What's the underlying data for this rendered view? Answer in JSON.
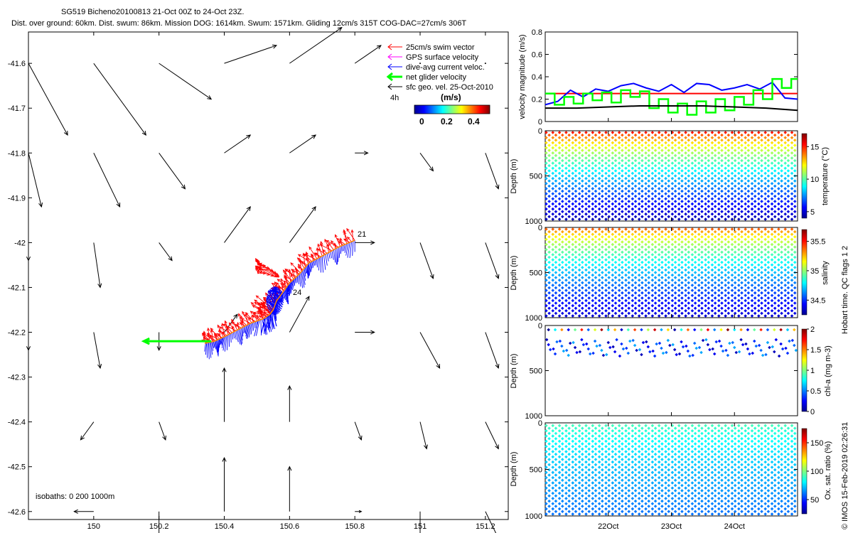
{
  "header": {
    "title": "SG519 Bicheno20100813 21-Oct 00Z to 24-Oct 23Z.",
    "subtitle": "Dist. over ground: 60km. Dist. swum: 86km. Mission DOG: 1614km. Swum: 1571km. Gliding 12cm/s 315T COG-DAC=27cm/s 306T"
  },
  "colors": {
    "swim": "#ff0000",
    "gps": "#ff00ff",
    "dac": "#0000ff",
    "net": "#00ff00",
    "geo": "#000000",
    "mean_line": "#ff0000"
  },
  "chart_data": [
    {
      "type": "scatter",
      "id": "map",
      "xlim": [
        149.8,
        151.27
      ],
      "ylim": [
        -42.64,
        -41.53
      ],
      "xticks": [
        150,
        150.2,
        150.4,
        150.6,
        150.8,
        151,
        151.2
      ],
      "xtick_labels": [
        "150",
        "150.2",
        "150.4",
        "150.6",
        "150.8",
        "151",
        "151.2"
      ],
      "yticks": [
        -41.6,
        -41.7,
        -41.8,
        -41.9,
        -42,
        -42.1,
        -42.2,
        -42.3,
        -42.4,
        -42.5,
        -42.6
      ],
      "ytick_labels": [
        "-41.6",
        "-41.7",
        "-41.8",
        "-41.9",
        "-42",
        "-42.1",
        "-42.2",
        "-42.3",
        "-42.4",
        "-42.5",
        "-42.6"
      ],
      "legend": {
        "placement": "top-right",
        "items": [
          {
            "label": "25cm/s swim vector",
            "color": "#ff0000"
          },
          {
            "label": "GPS surface velocity",
            "color": "#ff00ff"
          },
          {
            "label": "dive-avg current veloc.",
            "color": "#0000ff"
          },
          {
            "label": "net glider velocity",
            "color": "#00ff00"
          },
          {
            "label": "sfc geo. vel. 25-Oct-2010",
            "color": "#000000"
          }
        ]
      },
      "colorbar": {
        "label": "(m/s)",
        "ticks": [
          "0",
          "0.2",
          "0.4"
        ],
        "range": [
          0,
          0.5
        ],
        "scale_note": "4h"
      },
      "annotations": [
        {
          "text": "21",
          "lon": 150.82,
          "lat": -41.995
        },
        {
          "text": "24",
          "lon": 150.615,
          "lat": -42.113
        }
      ],
      "isobaths_label": "isobaths: 0   200  1000m",
      "geo_vectors": [
        {
          "lon": 149.8,
          "lat": -41.6,
          "du": 0.03,
          "dv": -0.04
        },
        {
          "lon": 150.0,
          "lat": -41.6,
          "du": 0.04,
          "dv": -0.04
        },
        {
          "lon": 150.2,
          "lat": -41.6,
          "du": 0.04,
          "dv": -0.02
        },
        {
          "lon": 150.4,
          "lat": -41.6,
          "du": 0.04,
          "dv": 0.01
        },
        {
          "lon": 150.6,
          "lat": -41.6,
          "du": 0.04,
          "dv": 0.02
        },
        {
          "lon": 150.8,
          "lat": -41.6,
          "du": 0.02,
          "dv": 0.01
        },
        {
          "lon": 151.0,
          "lat": -41.6,
          "du": 0.0,
          "dv": 0.0
        },
        {
          "lon": 151.2,
          "lat": -41.6,
          "du": 0.0,
          "dv": 0.0
        },
        {
          "lon": 149.8,
          "lat": -41.8,
          "du": 0.01,
          "dv": -0.03
        },
        {
          "lon": 150.0,
          "lat": -41.8,
          "du": 0.02,
          "dv": -0.03
        },
        {
          "lon": 150.2,
          "lat": -41.8,
          "du": 0.02,
          "dv": -0.02
        },
        {
          "lon": 150.4,
          "lat": -41.8,
          "du": 0.02,
          "dv": 0.01
        },
        {
          "lon": 150.6,
          "lat": -41.8,
          "du": 0.02,
          "dv": 0.01
        },
        {
          "lon": 150.8,
          "lat": -41.8,
          "du": 0.01,
          "dv": 0.0
        },
        {
          "lon": 151.0,
          "lat": -41.8,
          "du": 0.01,
          "dv": -0.01
        },
        {
          "lon": 151.2,
          "lat": -41.8,
          "du": 0.01,
          "dv": -0.02
        },
        {
          "lon": 149.8,
          "lat": -42.0,
          "du": 0.0,
          "dv": -0.01
        },
        {
          "lon": 150.0,
          "lat": -42.0,
          "du": 0.005,
          "dv": -0.025
        },
        {
          "lon": 150.2,
          "lat": -42.0,
          "du": 0.01,
          "dv": -0.01
        },
        {
          "lon": 150.4,
          "lat": -42.0,
          "du": 0.02,
          "dv": 0.02
        },
        {
          "lon": 150.6,
          "lat": -42.0,
          "du": 0.02,
          "dv": 0.02
        },
        {
          "lon": 150.8,
          "lat": -42.0,
          "du": 0.015,
          "dv": 0.0
        },
        {
          "lon": 151.0,
          "lat": -42.0,
          "du": 0.01,
          "dv": -0.02
        },
        {
          "lon": 151.2,
          "lat": -42.0,
          "du": 0.01,
          "dv": -0.02
        },
        {
          "lon": 149.8,
          "lat": -42.2,
          "du": 0.0,
          "dv": -0.01
        },
        {
          "lon": 150.0,
          "lat": -42.2,
          "du": 0.005,
          "dv": -0.02
        },
        {
          "lon": 150.2,
          "lat": -42.2,
          "du": 0.0,
          "dv": -0.01
        },
        {
          "lon": 150.4,
          "lat": -42.2,
          "du": 0.01,
          "dv": 0.01
        },
        {
          "lon": 150.6,
          "lat": -42.2,
          "du": 0.015,
          "dv": 0.02
        },
        {
          "lon": 150.8,
          "lat": -42.2,
          "du": 0.015,
          "dv": 0.0
        },
        {
          "lon": 151.0,
          "lat": -42.2,
          "du": 0.015,
          "dv": -0.02
        },
        {
          "lon": 151.2,
          "lat": -42.2,
          "du": 0.01,
          "dv": -0.02
        },
        {
          "lon": 150.0,
          "lat": -42.4,
          "du": -0.01,
          "dv": -0.01
        },
        {
          "lon": 150.2,
          "lat": -42.4,
          "du": 0.005,
          "dv": -0.01
        },
        {
          "lon": 150.4,
          "lat": -42.4,
          "du": 0.0,
          "dv": 0.03
        },
        {
          "lon": 150.6,
          "lat": -42.4,
          "du": 0.0,
          "dv": 0.02
        },
        {
          "lon": 150.8,
          "lat": -42.4,
          "du": 0.005,
          "dv": -0.01
        },
        {
          "lon": 151.0,
          "lat": -42.4,
          "du": 0.005,
          "dv": -0.015
        },
        {
          "lon": 151.2,
          "lat": -42.4,
          "du": 0.01,
          "dv": -0.015
        },
        {
          "lon": 150.0,
          "lat": -42.6,
          "du": -0.015,
          "dv": 0.0
        },
        {
          "lon": 150.2,
          "lat": -42.6,
          "du": 0.0,
          "dv": -0.015
        },
        {
          "lon": 150.4,
          "lat": -42.6,
          "du": 0.0,
          "dv": 0.03
        },
        {
          "lon": 150.6,
          "lat": -42.6,
          "du": 0.0,
          "dv": 0.025
        },
        {
          "lon": 150.8,
          "lat": -42.6,
          "du": 0.005,
          "dv": 0.0
        },
        {
          "lon": 151.0,
          "lat": -42.6,
          "du": 0.0,
          "dv": -0.015
        },
        {
          "lon": 151.2,
          "lat": -42.6,
          "du": 0.01,
          "dv": -0.015
        }
      ],
      "track": {
        "lon": [
          150.8,
          150.75,
          150.7,
          150.66,
          150.63,
          150.6,
          150.58,
          150.56,
          150.55,
          150.54,
          150.52,
          150.48,
          150.44,
          150.4,
          150.37,
          150.34
        ],
        "lat": [
          -41.995,
          -42.01,
          -42.03,
          -42.045,
          -42.07,
          -42.09,
          -42.11,
          -42.13,
          -42.15,
          -42.16,
          -42.17,
          -42.18,
          -42.195,
          -42.21,
          -42.22,
          -42.225
        ]
      },
      "net_velocity": {
        "lon": 150.36,
        "lat": -42.22,
        "du": -0.08,
        "dv": 0.0
      }
    },
    {
      "type": "line",
      "id": "velocity",
      "ylabel": "velocity magnitude (m/s)",
      "xlim": [
        0,
        4
      ],
      "ylim": [
        0,
        0.8
      ],
      "yticks": [
        0,
        0.2,
        0.4,
        0.6,
        0.8
      ],
      "ytick_labels": [
        "0",
        "0.2",
        "0.4",
        "0.6",
        "0.8"
      ],
      "series": [
        {
          "color": "#ff0000",
          "x": [
            0,
            4
          ],
          "y": [
            0.25,
            0.25
          ]
        },
        {
          "color": "#0000ff",
          "x": [
            0,
            0.2,
            0.4,
            0.6,
            0.8,
            1.0,
            1.2,
            1.4,
            1.6,
            1.8,
            2.0,
            2.2,
            2.4,
            2.6,
            2.8,
            3.0,
            3.2,
            3.4,
            3.6,
            3.8,
            4.0
          ],
          "y": [
            0.15,
            0.18,
            0.28,
            0.22,
            0.29,
            0.27,
            0.32,
            0.34,
            0.3,
            0.27,
            0.33,
            0.26,
            0.34,
            0.33,
            0.28,
            0.3,
            0.33,
            0.29,
            0.35,
            0.21,
            0.2
          ]
        },
        {
          "color": "#00ff00",
          "x": [
            0,
            0.15,
            0.3,
            0.45,
            0.6,
            0.75,
            0.9,
            1.05,
            1.2,
            1.35,
            1.5,
            1.65,
            1.8,
            1.95,
            2.1,
            2.25,
            2.4,
            2.55,
            2.7,
            2.85,
            3.0,
            3.15,
            3.3,
            3.45,
            3.6,
            3.75,
            3.9,
            4.0
          ],
          "y": [
            0.25,
            0.15,
            0.22,
            0.16,
            0.25,
            0.19,
            0.26,
            0.17,
            0.28,
            0.22,
            0.27,
            0.12,
            0.2,
            0.08,
            0.16,
            0.06,
            0.18,
            0.08,
            0.2,
            0.1,
            0.22,
            0.15,
            0.28,
            0.2,
            0.38,
            0.3,
            0.38,
            0.35
          ]
        },
        {
          "color": "#000000",
          "x": [
            0,
            0.5,
            1.0,
            1.5,
            2.0,
            2.5,
            3.0,
            3.5,
            4.0
          ],
          "y": [
            0.12,
            0.12,
            0.13,
            0.14,
            0.14,
            0.14,
            0.13,
            0.12,
            0.1
          ]
        }
      ]
    },
    {
      "type": "scatter",
      "id": "temperature",
      "ylabel": "Depth (m)",
      "yticks": [
        0,
        500,
        1000
      ],
      "ytick_labels": [
        "0",
        "500",
        "1000"
      ],
      "ylim": [
        0,
        1000
      ],
      "xlim": [
        0,
        4
      ],
      "n_dives": 38,
      "variable": {
        "surface": 16.5,
        "deep": 4.5
      },
      "colorbar": {
        "label": "temperature (°C)",
        "range": [
          4,
          17
        ],
        "ticks": [
          5,
          10,
          15
        ],
        "tick_labels": [
          "5",
          "10",
          "15"
        ]
      }
    },
    {
      "type": "scatter",
      "id": "salinity",
      "ylabel": "Depth (m)",
      "yticks": [
        0,
        500,
        1000
      ],
      "ytick_labels": [
        "0",
        "500",
        "1000"
      ],
      "ylim": [
        0,
        1000
      ],
      "xlim": [
        0,
        4
      ],
      "n_dives": 38,
      "variable": {
        "surface": 35.55,
        "deep": 34.35
      },
      "colorbar": {
        "label": "salinity",
        "range": [
          34.25,
          35.7
        ],
        "ticks": [
          34.5,
          35,
          35.5
        ],
        "tick_labels": [
          "34.5",
          "35",
          "35.5"
        ]
      }
    },
    {
      "type": "scatter",
      "id": "chla",
      "ylabel": "Depth (m)",
      "yticks": [
        0,
        500,
        1000
      ],
      "ytick_labels": [
        "0",
        "500",
        "1000"
      ],
      "ylim": [
        0,
        1000
      ],
      "xlim": [
        0,
        4
      ],
      "n_dives": 38,
      "colorbar": {
        "label": "chl-a (mg m-3)",
        "range": [
          0,
          2
        ],
        "ticks": [
          0,
          0.5,
          1,
          1.5,
          2
        ],
        "tick_labels": [
          "0",
          "0.5",
          "1",
          "1.5",
          "2"
        ]
      }
    },
    {
      "type": "scatter",
      "id": "oxygen",
      "ylabel": "Depth (m)",
      "yticks": [
        0,
        500,
        1000
      ],
      "ytick_labels": [
        "0",
        "500",
        "1000"
      ],
      "ylim": [
        0,
        1000
      ],
      "xlim": [
        0,
        4
      ],
      "n_dives": 38,
      "xticks": [
        1,
        2,
        3
      ],
      "xtick_labels": [
        "22Oct",
        "23Oct",
        "24Oct"
      ],
      "variable": {
        "surface": 95,
        "deep": 60
      },
      "colorbar": {
        "label": "Ox. sat. ratio (%)",
        "range": [
          25,
          175
        ],
        "ticks": [
          50,
          100,
          150
        ],
        "tick_labels": [
          "50",
          "100",
          "150"
        ]
      }
    }
  ],
  "side_text": {
    "qc_flags": "Hobart time. QC flags 1  2",
    "credit": "© IMOS 15-Feb-2019 02:26:31"
  }
}
